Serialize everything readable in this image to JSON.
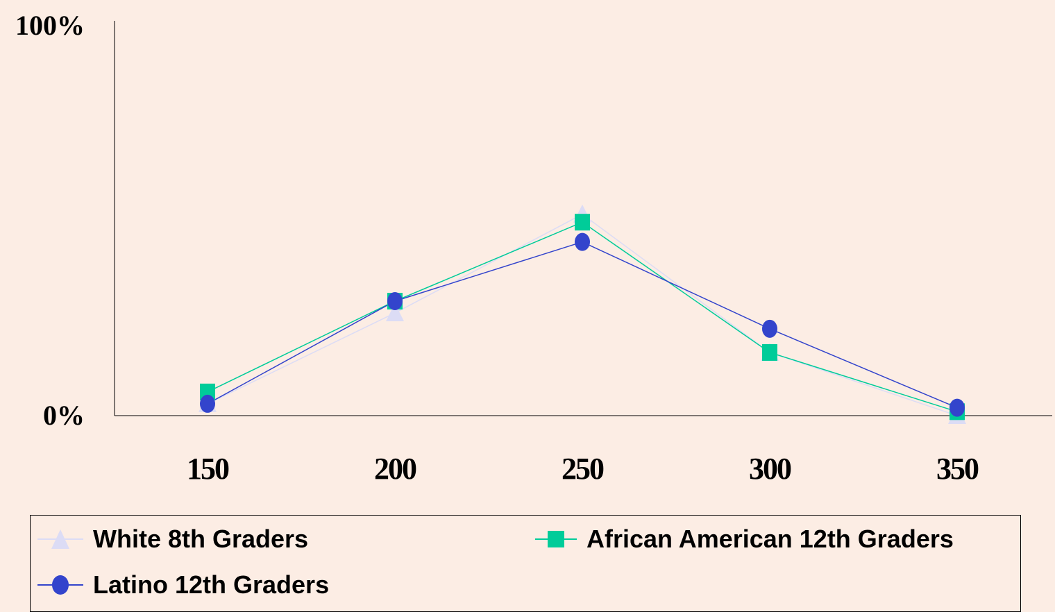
{
  "chart_data": {
    "type": "line",
    "x": [
      150,
      200,
      250,
      300,
      350
    ],
    "y_ticks": [
      "0%",
      "100%"
    ],
    "ylim": [
      0,
      100
    ],
    "series": [
      {
        "name": "White 8th Graders",
        "color": "#dcdcf5",
        "marker": "triangle",
        "values": [
          3,
          26,
          51,
          16,
          0
        ]
      },
      {
        "name": "African American 12th Graders",
        "color": "#00cc99",
        "marker": "square",
        "values": [
          6,
          29,
          49,
          16,
          1
        ]
      },
      {
        "name": "Latino 12th Graders",
        "color": "#3344cc",
        "marker": "circle",
        "values": [
          3,
          29,
          44,
          22,
          2
        ]
      }
    ],
    "grid": false,
    "legend_position": "bottom"
  }
}
